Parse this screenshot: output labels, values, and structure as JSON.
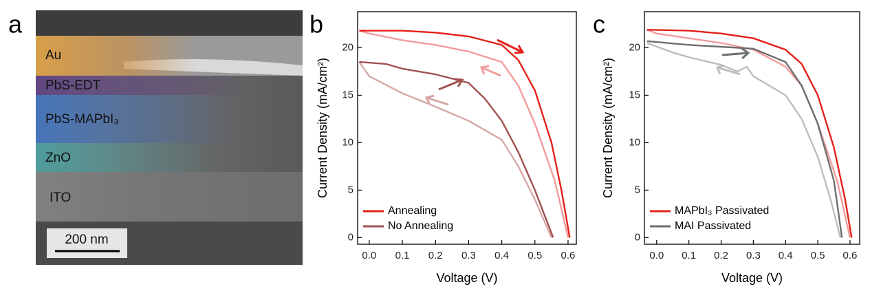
{
  "sem": {
    "label": "a",
    "layers": [
      "Au",
      "PbS-EDT",
      "PbS-MAPbI₃",
      "ZnO",
      "ITO"
    ],
    "scale_bar": "200 nm"
  },
  "chart_data": [
    {
      "type": "line",
      "label": "b",
      "xlabel": "Voltage (V)",
      "ylabel": "Current Density (mA/cm²)",
      "xlim": [
        -0.035,
        0.625
      ],
      "ylim": [
        -0.7,
        23.8
      ],
      "xticks": [
        {
          "value": 0,
          "label": "0.0"
        },
        0.1,
        0.2,
        0.3,
        0.4,
        0.5,
        0.6
      ],
      "yticks": [
        0,
        5,
        10,
        15,
        20
      ],
      "legend": "lower left",
      "series": [
        {
          "name": "Annealing",
          "color": "#e32119",
          "x": [
            -0.03,
            0.1,
            0.2,
            0.3,
            0.4,
            0.45,
            0.5,
            0.55,
            0.58,
            0.605
          ],
          "values": [
            21.8,
            21.8,
            21.6,
            21.2,
            20.3,
            18.7,
            15.5,
            10,
            5,
            0
          ],
          "reverse": {
            "color": "#f29b9b",
            "x": [
              -0.03,
              0,
              0.1,
              0.2,
              0.3,
              0.4,
              0.45,
              0.5,
              0.56,
              0.6
            ],
            "values": [
              21.8,
              21.5,
              20.8,
              20.3,
              19.6,
              18.5,
              16,
              12,
              6,
              0
            ]
          }
        },
        {
          "name": "No Annealing",
          "color": "#a0514f",
          "x": [
            -0.03,
            0.05,
            0.1,
            0.2,
            0.3,
            0.35,
            0.4,
            0.45,
            0.5,
            0.555
          ],
          "values": [
            18.5,
            18.3,
            17.8,
            17.2,
            16.3,
            14.6,
            12.3,
            9,
            5,
            0
          ],
          "reverse": {
            "color": "#d5a8a6",
            "x": [
              -0.03,
              0,
              0.1,
              0.2,
              0.3,
              0.4,
              0.45,
              0.5,
              0.55
            ],
            "values": [
              18.5,
              17,
              15.2,
              13.8,
              12.3,
              10.3,
              7.5,
              4,
              0
            ]
          }
        }
      ]
    },
    {
      "type": "line",
      "label": "c",
      "xlabel": "Voltage (V)",
      "ylabel": "Current Density (mA/cm²)",
      "xlim": [
        -0.038,
        0.63
      ],
      "ylim": [
        -0.7,
        23.8
      ],
      "xticks": [
        {
          "value": 0,
          "label": "0.0"
        },
        0.1,
        0.2,
        0.3,
        0.4,
        0.5,
        0.6
      ],
      "yticks": [
        0,
        5,
        10,
        15,
        20
      ],
      "legend": "lower left",
      "series": [
        {
          "name": "MAPbI₃ Passivated",
          "color": "#e32119",
          "x": [
            -0.03,
            0.1,
            0.2,
            0.3,
            0.4,
            0.45,
            0.5,
            0.55,
            0.585,
            0.605
          ],
          "values": [
            21.9,
            21.8,
            21.5,
            21,
            19.8,
            18.3,
            15,
            9.5,
            4,
            0
          ],
          "reverse": {
            "color": "#f29b9b",
            "x": [
              -0.03,
              0,
              0.1,
              0.2,
              0.3,
              0.4,
              0.45,
              0.5,
              0.56,
              0.6
            ],
            "values": [
              21.9,
              21.5,
              21,
              20.5,
              19.8,
              18,
              16,
              12,
              6,
              0
            ]
          }
        },
        {
          "name": "MAI Passivated",
          "color": "#6e6e6e",
          "x": [
            -0.03,
            0,
            0.1,
            0.2,
            0.3,
            0.4,
            0.45,
            0.5,
            0.55,
            0.575
          ],
          "values": [
            20.7,
            20.6,
            20.3,
            20.1,
            19.9,
            18.5,
            16,
            12,
            6,
            0
          ],
          "reverse": {
            "color": "#bdbdbd",
            "x": [
              -0.03,
              0.05,
              0.1,
              0.2,
              0.25,
              0.28,
              0.3,
              0.4,
              0.45,
              0.5,
              0.54,
              0.57
            ],
            "values": [
              20.5,
              19.5,
              19,
              18.2,
              17.5,
              18,
              17,
              15,
              12.5,
              8.5,
              4,
              0
            ]
          }
        }
      ]
    }
  ]
}
